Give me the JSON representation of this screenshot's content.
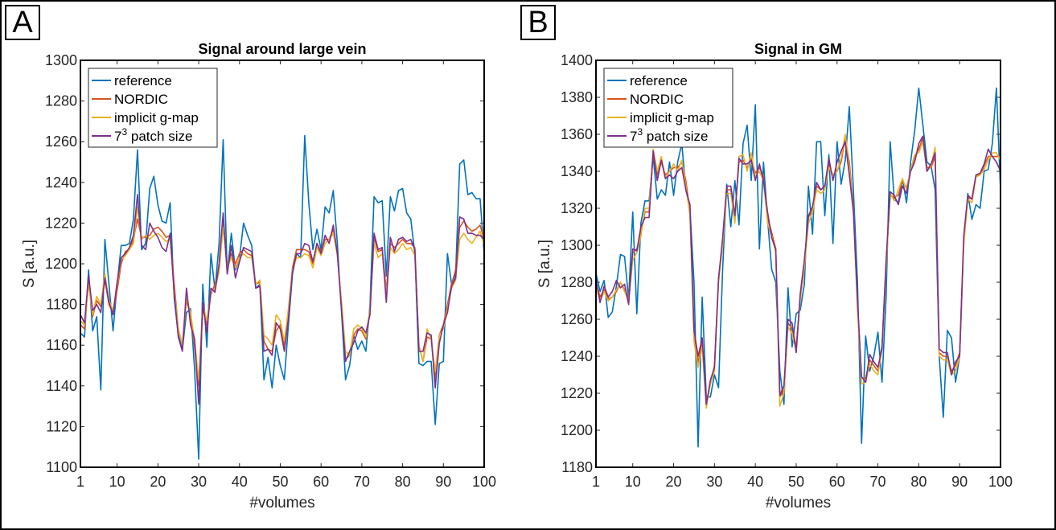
{
  "panel_labels": [
    "A",
    "B"
  ],
  "chart_data": [
    {
      "type": "line",
      "panel": "A",
      "title": "Signal around large vein",
      "xlabel": "#volumes",
      "ylabel": "S [a.u.]",
      "xlim": [
        1,
        100
      ],
      "ylim": [
        1100,
        1300
      ],
      "xticks": [
        1,
        10,
        20,
        30,
        40,
        50,
        60,
        70,
        80,
        90,
        100
      ],
      "yticks": [
        1100,
        1120,
        1140,
        1160,
        1180,
        1200,
        1220,
        1240,
        1260,
        1280,
        1300
      ],
      "legend_position": "top-left",
      "series": [
        {
          "name": "reference",
          "color": "#0072BD",
          "values": [
            1166,
            1164,
            1197,
            1167,
            1174,
            1138,
            1212,
            1190,
            1167,
            1190,
            1209,
            1209,
            1210,
            1222,
            1256,
            1207,
            1210,
            1237,
            1243,
            1229,
            1221,
            1220,
            1230,
            1183,
            1165,
            1158,
            1176,
            1178,
            1148,
            1104,
            1190,
            1159,
            1205,
            1187,
            1210,
            1261,
            1195,
            1215,
            1197,
            1203,
            1220,
            1214,
            1209,
            1188,
            1190,
            1143,
            1154,
            1139,
            1160,
            1150,
            1143,
            1170,
            1195,
            1205,
            1203,
            1263,
            1230,
            1207,
            1217,
            1207,
            1228,
            1225,
            1236,
            1210,
            1177,
            1143,
            1150,
            1165,
            1158,
            1162,
            1157,
            1180,
            1233,
            1230,
            1231,
            1194,
            1233,
            1226,
            1236,
            1237,
            1225,
            1222,
            1205,
            1151,
            1150,
            1152,
            1152,
            1121,
            1151,
            1152,
            1205,
            1190,
            1195,
            1249,
            1251,
            1234,
            1235,
            1232,
            1232,
            1205
          ]
        },
        {
          "name": "NORDIC",
          "color": "#D95319",
          "values": [
            1170,
            1168,
            1192,
            1174,
            1182,
            1179,
            1192,
            1180,
            1176,
            1187,
            1200,
            1206,
            1207,
            1212,
            1222,
            1213,
            1213,
            1214,
            1217,
            1218,
            1216,
            1213,
            1214,
            1190,
            1168,
            1160,
            1182,
            1175,
            1159,
            1140,
            1178,
            1170,
            1185,
            1190,
            1197,
            1220,
            1197,
            1205,
            1200,
            1205,
            1207,
            1205,
            1204,
            1190,
            1191,
            1162,
            1158,
            1157,
            1167,
            1170,
            1160,
            1177,
            1198,
            1207,
            1207,
            1207,
            1206,
            1200,
            1210,
            1206,
            1212,
            1212,
            1217,
            1205,
            1180,
            1153,
            1155,
            1165,
            1168,
            1167,
            1163,
            1177,
            1213,
            1206,
            1207,
            1187,
            1210,
            1208,
            1210,
            1212,
            1210,
            1210,
            1208,
            1160,
            1152,
            1164,
            1163,
            1143,
            1165,
            1170,
            1180,
            1190,
            1197,
            1218,
            1221,
            1218,
            1216,
            1217,
            1219,
            1212
          ]
        },
        {
          "name": "implicit g-map",
          "color": "#EDB120",
          "values": [
            1172,
            1170,
            1190,
            1175,
            1184,
            1180,
            1195,
            1182,
            1177,
            1190,
            1202,
            1204,
            1207,
            1210,
            1228,
            1212,
            1214,
            1212,
            1214,
            1215,
            1213,
            1211,
            1212,
            1187,
            1168,
            1160,
            1183,
            1176,
            1162,
            1143,
            1180,
            1172,
            1186,
            1188,
            1196,
            1218,
            1198,
            1203,
            1198,
            1203,
            1205,
            1203,
            1203,
            1190,
            1192,
            1165,
            1163,
            1160,
            1175,
            1172,
            1162,
            1178,
            1197,
            1203,
            1203,
            1205,
            1204,
            1198,
            1208,
            1204,
            1210,
            1212,
            1215,
            1204,
            1182,
            1157,
            1155,
            1168,
            1170,
            1168,
            1164,
            1178,
            1210,
            1203,
            1205,
            1185,
            1208,
            1205,
            1207,
            1210,
            1207,
            1208,
            1204,
            1160,
            1152,
            1168,
            1163,
            1147,
            1165,
            1168,
            1178,
            1188,
            1192,
            1212,
            1215,
            1212,
            1210,
            1213,
            1216,
            1209
          ]
        },
        {
          "name": "7<sup>3</sup> patch size",
          "color": "#7E2F8E",
          "values": [
            1175,
            1171,
            1194,
            1177,
            1180,
            1176,
            1193,
            1181,
            1175,
            1191,
            1203,
            1205,
            1208,
            1214,
            1234,
            1209,
            1207,
            1220,
            1216,
            1213,
            1208,
            1206,
            1215,
            1185,
            1164,
            1157,
            1188,
            1170,
            1163,
            1131,
            1181,
            1166,
            1188,
            1186,
            1200,
            1225,
            1195,
            1209,
            1193,
            1201,
            1208,
            1207,
            1206,
            1188,
            1189,
            1157,
            1158,
            1155,
            1171,
            1168,
            1157,
            1173,
            1196,
            1205,
            1205,
            1210,
            1209,
            1201,
            1210,
            1205,
            1214,
            1210,
            1219,
            1205,
            1178,
            1152,
            1157,
            1161,
            1167,
            1169,
            1166,
            1175,
            1215,
            1207,
            1208,
            1181,
            1213,
            1206,
            1212,
            1213,
            1211,
            1212,
            1207,
            1157,
            1157,
            1166,
            1165,
            1139,
            1161,
            1170,
            1176,
            1189,
            1193,
            1223,
            1222,
            1215,
            1215,
            1214,
            1214,
            1212
          ]
        }
      ]
    },
    {
      "type": "line",
      "panel": "B",
      "title": "Signal in GM",
      "xlabel": "#volumes",
      "ylabel": "S [a.u.]",
      "xlim": [
        1,
        100
      ],
      "ylim": [
        1180,
        1400
      ],
      "xticks": [
        1,
        10,
        20,
        30,
        40,
        50,
        60,
        70,
        80,
        90,
        100
      ],
      "yticks": [
        1180,
        1200,
        1220,
        1240,
        1260,
        1280,
        1300,
        1320,
        1340,
        1360,
        1380,
        1400
      ],
      "legend_position": "top-left",
      "series": [
        {
          "name": "reference",
          "color": "#0072BD",
          "values": [
            1285,
            1275,
            1281,
            1261,
            1264,
            1278,
            1295,
            1294,
            1271,
            1318,
            1263,
            1312,
            1324,
            1324,
            1348,
            1325,
            1330,
            1327,
            1345,
            1327,
            1345,
            1355,
            1330,
            1320,
            1280,
            1191,
            1272,
            1218,
            1218,
            1230,
            1223,
            1287,
            1333,
            1310,
            1335,
            1311,
            1355,
            1365,
            1335,
            1376,
            1298,
            1345,
            1314,
            1287,
            1280,
            1232,
            1214,
            1277,
            1245,
            1263,
            1265,
            1279,
            1332,
            1306,
            1356,
            1356,
            1316,
            1349,
            1301,
            1356,
            1333,
            1346,
            1375,
            1330,
            1280,
            1193,
            1251,
            1232,
            1240,
            1253,
            1226,
            1272,
            1356,
            1325,
            1323,
            1336,
            1323,
            1345,
            1362,
            1385,
            1365,
            1345,
            1343,
            1330,
            1240,
            1207,
            1254,
            1250,
            1226,
            1240,
            1301,
            1328,
            1314,
            1322,
            1320,
            1340,
            1341,
            1355,
            1385,
            1330
          ]
        },
        {
          "name": "NORDIC",
          "color": "#D95319",
          "values": [
            1280,
            1272,
            1276,
            1271,
            1272,
            1275,
            1280,
            1276,
            1271,
            1296,
            1298,
            1306,
            1318,
            1318,
            1350,
            1338,
            1345,
            1338,
            1340,
            1342,
            1342,
            1345,
            1335,
            1318,
            1250,
            1237,
            1247,
            1215,
            1225,
            1235,
            1282,
            1302,
            1330,
            1330,
            1315,
            1345,
            1346,
            1342,
            1347,
            1339,
            1342,
            1337,
            1315,
            1307,
            1298,
            1218,
            1222,
            1258,
            1255,
            1245,
            1272,
            1290,
            1315,
            1320,
            1332,
            1330,
            1332,
            1343,
            1338,
            1340,
            1345,
            1358,
            1345,
            1320,
            1268,
            1228,
            1228,
            1238,
            1235,
            1232,
            1246,
            1290,
            1327,
            1326,
            1327,
            1335,
            1331,
            1340,
            1348,
            1352,
            1358,
            1342,
            1342,
            1348,
            1242,
            1240,
            1240,
            1232,
            1235,
            1242,
            1302,
            1326,
            1325,
            1338,
            1338,
            1343,
            1348,
            1348,
            1348,
            1348
          ]
        },
        {
          "name": "implicit g-map",
          "color": "#EDB120",
          "values": [
            1278,
            1270,
            1275,
            1270,
            1272,
            1276,
            1280,
            1275,
            1270,
            1292,
            1296,
            1305,
            1320,
            1320,
            1352,
            1340,
            1348,
            1336,
            1340,
            1344,
            1340,
            1346,
            1332,
            1316,
            1248,
            1234,
            1245,
            1212,
            1225,
            1232,
            1280,
            1300,
            1328,
            1328,
            1312,
            1348,
            1349,
            1340,
            1350,
            1337,
            1340,
            1335,
            1312,
            1305,
            1296,
            1213,
            1220,
            1256,
            1252,
            1243,
            1270,
            1288,
            1312,
            1318,
            1330,
            1328,
            1330,
            1342,
            1338,
            1340,
            1347,
            1360,
            1342,
            1318,
            1266,
            1225,
            1226,
            1236,
            1232,
            1230,
            1244,
            1288,
            1328,
            1324,
            1330,
            1336,
            1330,
            1341,
            1349,
            1350,
            1356,
            1340,
            1343,
            1353,
            1240,
            1238,
            1238,
            1230,
            1232,
            1240,
            1300,
            1325,
            1323,
            1337,
            1338,
            1341,
            1346,
            1350,
            1350,
            1346
          ]
        },
        {
          "name": "7<sup>3</sup> patch size",
          "color": "#7E2F8E",
          "values": [
            1282,
            1269,
            1278,
            1272,
            1275,
            1281,
            1277,
            1279,
            1268,
            1298,
            1297,
            1310,
            1315,
            1315,
            1351,
            1335,
            1346,
            1336,
            1338,
            1336,
            1340,
            1342,
            1330,
            1322,
            1254,
            1240,
            1250,
            1214,
            1227,
            1234,
            1282,
            1304,
            1332,
            1332,
            1316,
            1347,
            1344,
            1344,
            1346,
            1335,
            1344,
            1335,
            1318,
            1304,
            1298,
            1219,
            1224,
            1260,
            1258,
            1242,
            1274,
            1292,
            1316,
            1321,
            1334,
            1330,
            1332,
            1347,
            1335,
            1345,
            1351,
            1356,
            1338,
            1318,
            1270,
            1229,
            1226,
            1241,
            1237,
            1234,
            1244,
            1292,
            1329,
            1327,
            1322,
            1332,
            1328,
            1340,
            1345,
            1355,
            1359,
            1340,
            1344,
            1350,
            1244,
            1242,
            1242,
            1230,
            1237,
            1240,
            1305,
            1327,
            1325,
            1338,
            1339,
            1344,
            1352,
            1348,
            1345,
            1340
          ]
        }
      ]
    }
  ]
}
